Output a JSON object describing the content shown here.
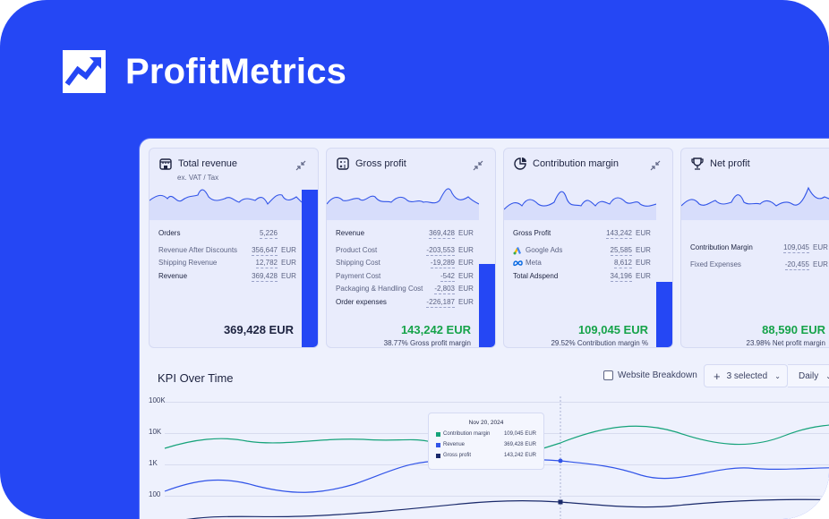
{
  "brand": {
    "name": "ProfitMetrics",
    "accent": "#2547f4",
    "green": "#16a34a"
  },
  "cards": [
    {
      "title": "Total revenue",
      "subtitle": "ex. VAT / Tax",
      "icon": "store-icon",
      "rows": [
        {
          "label": "Orders",
          "value": "5,226",
          "unit": "",
          "bold": true
        },
        {
          "gap": true
        },
        {
          "label": "Revenue After Discounts",
          "value": "356,647",
          "unit": "EUR"
        },
        {
          "label": "Shipping Revenue",
          "value": "12,782",
          "unit": "EUR"
        },
        {
          "label": "Revenue",
          "value": "369,428",
          "unit": "EUR",
          "bold": true
        }
      ],
      "big_value": "369,428 EUR",
      "footer": "",
      "bar_fill": 0.8
    },
    {
      "title": "Gross profit",
      "subtitle": "",
      "icon": "calculator-icon",
      "rows": [
        {
          "label": "Revenue",
          "value": "369,428",
          "unit": "EUR",
          "bold": true
        },
        {
          "gap": true
        },
        {
          "label": "Product Cost",
          "value": "-203,553",
          "unit": "EUR"
        },
        {
          "label": "Shipping Cost",
          "value": "-19,289",
          "unit": "EUR"
        },
        {
          "label": "Payment Cost",
          "value": "-542",
          "unit": "EUR"
        },
        {
          "label": "Packaging & Handling Cost",
          "value": "-2,803",
          "unit": "EUR"
        },
        {
          "label": "Order expenses",
          "value": "-226,187",
          "unit": "EUR",
          "bold": true
        }
      ],
      "big_value": "143,242 EUR",
      "footer": "38.77%  Gross profit margin",
      "bar_fill": 0.43
    },
    {
      "title": "Contribution margin",
      "subtitle": "",
      "icon": "pie-chart-icon",
      "rows": [
        {
          "label": "Gross Profit",
          "value": "143,242",
          "unit": "EUR",
          "bold": true
        },
        {
          "gap": true
        },
        {
          "label": "Google Ads",
          "value": "25,585",
          "unit": "EUR",
          "mini": "google-ads-icon"
        },
        {
          "label": "Meta",
          "value": "8,612",
          "unit": "EUR",
          "mini": "meta-icon"
        },
        {
          "label": "Total Adspend",
          "value": "34,196",
          "unit": "EUR",
          "bold": true
        }
      ],
      "big_value": "109,045 EUR",
      "footer": "29.52%  Contribution margin %",
      "bar_fill": 0.34
    },
    {
      "title": "Net profit",
      "subtitle": "",
      "icon": "trophy-icon",
      "rows": [
        {
          "gap": true
        },
        {
          "gap": true
        },
        {
          "gap": true
        },
        {
          "gap": true
        },
        {
          "label": "Contribution Margin",
          "value": "109,045",
          "unit": "EUR",
          "bold": true
        },
        {
          "gap": true
        },
        {
          "label": "Fixed Expenses",
          "value": "-20,455",
          "unit": "EUR"
        }
      ],
      "big_value": "88,590 EUR",
      "footer": "23.98%  Net profit margin",
      "bar_fill": 0.25
    }
  ],
  "kpi": {
    "title": "KPI Over Time",
    "website_breakdown": "Website Breakdown",
    "selected": "3 selected",
    "period": "Daily",
    "y_ticks": [
      "100K",
      "10K",
      "1K",
      "100"
    ],
    "tooltip": {
      "date": "Nov 20, 2024",
      "rows": [
        {
          "label": "Contribution margin",
          "value": "109,045",
          "unit": "EUR",
          "color": "#16a37a"
        },
        {
          "label": "Revenue",
          "value": "369,428",
          "unit": "EUR",
          "color": "#3154e8"
        },
        {
          "label": "Gross profit",
          "value": "143,242",
          "unit": "EUR",
          "color": "#1a2a6b"
        }
      ]
    }
  }
}
